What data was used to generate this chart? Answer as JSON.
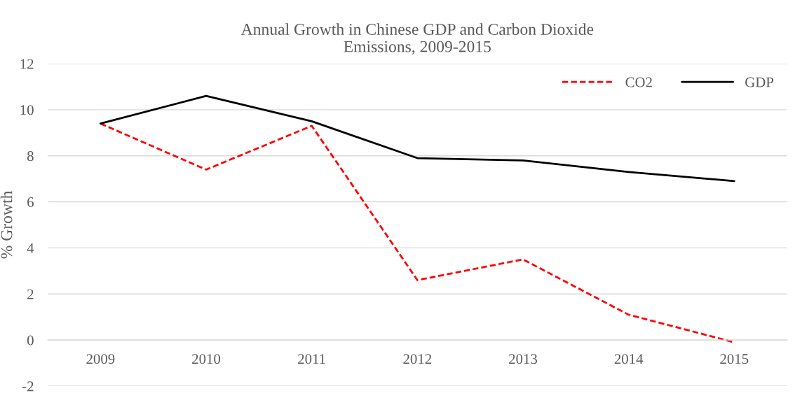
{
  "chart_data": {
    "type": "line",
    "title": "Annual Growth in Chinese GDP and Carbon Dioxide\nEmissions, 2009-2015",
    "ylabel": "% Growth",
    "categories": [
      "2009",
      "2010",
      "2011",
      "2012",
      "2013",
      "2014",
      "2015"
    ],
    "series": [
      {
        "name": "CO2",
        "color": "#ff0000",
        "line_style": "dashed",
        "values": [
          9.4,
          7.4,
          9.3,
          2.6,
          3.5,
          1.1,
          -0.1
        ]
      },
      {
        "name": "GDP",
        "color": "#000000",
        "line_style": "solid",
        "values": [
          9.4,
          10.6,
          9.5,
          7.9,
          7.8,
          7.3,
          6.9
        ]
      }
    ],
    "ylim": [
      -2,
      12
    ],
    "yticks": [
      -2,
      0,
      2,
      4,
      6,
      8,
      10,
      12
    ],
    "grid": "y",
    "legend": "top right",
    "marker": "none"
  }
}
